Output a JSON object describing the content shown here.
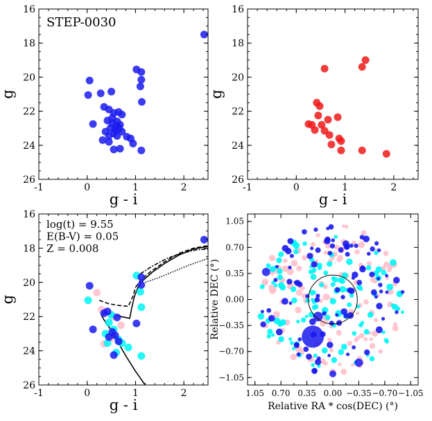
{
  "figure": {
    "label": "STEP-0030"
  },
  "chart_data": [
    {
      "type": "scatter",
      "panel": "top-left",
      "xlabel": "g - i",
      "ylabel": "g",
      "xlim": [
        -1,
        2.5
      ],
      "ylim": [
        26,
        16
      ],
      "xticks": [
        -1,
        0,
        1,
        2
      ],
      "yticks": [
        16,
        18,
        20,
        22,
        24,
        26
      ],
      "annotation": "STEP-0030",
      "color": "#1a1aee",
      "points": [
        [
          2.42,
          17.5
        ],
        [
          1.02,
          19.55
        ],
        [
          1.12,
          19.7
        ],
        [
          1.12,
          20.15
        ],
        [
          1.1,
          20.55
        ],
        [
          0.05,
          20.2
        ],
        [
          0.02,
          21.05
        ],
        [
          0.5,
          20.85
        ],
        [
          0.28,
          20.95
        ],
        [
          1.13,
          21.45
        ],
        [
          0.35,
          21.75
        ],
        [
          0.45,
          21.9
        ],
        [
          0.55,
          22.1
        ],
        [
          0.65,
          22.05
        ],
        [
          0.72,
          22.2
        ],
        [
          0.12,
          22.75
        ],
        [
          0.42,
          22.55
        ],
        [
          0.52,
          22.7
        ],
        [
          0.62,
          22.6
        ],
        [
          0.68,
          22.8
        ],
        [
          0.48,
          23.0
        ],
        [
          0.58,
          23.1
        ],
        [
          0.66,
          23.0
        ],
        [
          0.38,
          23.2
        ],
        [
          0.55,
          23.3
        ],
        [
          0.62,
          23.45
        ],
        [
          0.72,
          23.2
        ],
        [
          0.82,
          23.5
        ],
        [
          0.9,
          23.6
        ],
        [
          0.95,
          23.9
        ],
        [
          0.32,
          23.7
        ],
        [
          0.45,
          23.8
        ],
        [
          0.55,
          24.25
        ],
        [
          0.68,
          24.2
        ],
        [
          1.12,
          24.3
        ],
        [
          0.6,
          22.9
        ],
        [
          0.52,
          22.4
        ],
        [
          0.45,
          23.45
        ]
      ]
    },
    {
      "type": "scatter",
      "panel": "top-right",
      "xlabel": "g - i",
      "ylabel": "g",
      "xlim": [
        -1,
        2.5
      ],
      "ylim": [
        26,
        16
      ],
      "xticks": [
        -1,
        0,
        1,
        2
      ],
      "yticks": [
        16,
        18,
        20,
        22,
        24,
        26
      ],
      "color": "#ee1a1a",
      "points": [
        [
          1.42,
          19.0
        ],
        [
          1.35,
          19.4
        ],
        [
          0.58,
          19.5
        ],
        [
          0.42,
          21.5
        ],
        [
          0.48,
          21.7
        ],
        [
          0.45,
          22.25
        ],
        [
          0.85,
          22.35
        ],
        [
          0.52,
          22.8
        ],
        [
          0.65,
          22.5
        ],
        [
          0.25,
          22.75
        ],
        [
          0.32,
          22.8
        ],
        [
          0.38,
          23.1
        ],
        [
          0.58,
          23.15
        ],
        [
          0.68,
          23.4
        ],
        [
          0.88,
          23.6
        ],
        [
          0.92,
          23.75
        ],
        [
          0.72,
          23.95
        ],
        [
          0.92,
          24.3
        ],
        [
          1.35,
          24.3
        ],
        [
          1.85,
          24.5
        ]
      ]
    },
    {
      "type": "scatter",
      "panel": "bottom-left",
      "xlabel": "g - i",
      "ylabel": "g",
      "xlim": [
        -1,
        2.5
      ],
      "ylim": [
        26,
        16
      ],
      "xticks": [
        -1,
        0,
        1,
        2
      ],
      "yticks": [
        16,
        18,
        20,
        22,
        24,
        26
      ],
      "annotation": [
        "log(t) = 9.55",
        "E(B-V) = 0.05",
        "Z = 0.008"
      ],
      "series": [
        {
          "name": "pink",
          "color": "#ffc0cb",
          "points": [
            [
              0.2,
              20.6
            ],
            [
              0.3,
              21.6
            ],
            [
              0.55,
              22.0
            ],
            [
              0.35,
              23.6
            ],
            [
              0.48,
              23.3
            ],
            [
              0.7,
              22.5
            ]
          ]
        },
        {
          "name": "cyan",
          "color": "#00f5f5",
          "points": [
            [
              0.02,
              21.05
            ],
            [
              1.1,
              20.55
            ],
            [
              1.12,
              21.45
            ],
            [
              0.45,
              22.35
            ],
            [
              0.55,
              22.75
            ],
            [
              0.38,
              23.0
            ],
            [
              0.65,
              23.35
            ],
            [
              0.42,
              23.55
            ],
            [
              0.6,
              24.1
            ],
            [
              0.72,
              23.55
            ],
            [
              0.85,
              23.8
            ],
            [
              1.12,
              24.3
            ],
            [
              1.02,
              19.6
            ],
            [
              0.5,
              21.9
            ]
          ]
        },
        {
          "name": "blue",
          "color": "#1a1aee",
          "points": [
            [
              2.42,
              17.5
            ],
            [
              1.12,
              19.7
            ],
            [
              1.12,
              20.15
            ],
            [
              0.05,
              20.2
            ],
            [
              0.35,
              21.8
            ],
            [
              0.62,
              22.05
            ],
            [
              0.12,
              22.75
            ],
            [
              1.02,
              22.4
            ],
            [
              0.52,
              22.9
            ],
            [
              0.58,
              23.1
            ],
            [
              0.45,
              23.2
            ],
            [
              0.65,
              23.45
            ],
            [
              0.55,
              24.25
            ],
            [
              0.42,
              21.7
            ]
          ]
        }
      ],
      "isochrones": [
        {
          "style": "solid",
          "points": [
            [
              1.2,
              26.0
            ],
            [
              1.0,
              25.2
            ],
            [
              0.8,
              24.3
            ],
            [
              0.6,
              23.3
            ],
            [
              0.45,
              22.6
            ],
            [
              0.35,
              22.2
            ],
            [
              0.3,
              21.95
            ],
            [
              0.35,
              21.8
            ],
            [
              0.5,
              21.85
            ],
            [
              0.7,
              22.0
            ],
            [
              0.88,
              22.1
            ],
            [
              0.92,
              21.5
            ],
            [
              0.98,
              20.8
            ],
            [
              1.05,
              20.3
            ],
            [
              1.15,
              19.9
            ],
            [
              1.35,
              19.4
            ],
            [
              1.6,
              18.9
            ],
            [
              1.9,
              18.4
            ],
            [
              2.2,
              18.05
            ],
            [
              2.5,
              17.9
            ]
          ]
        },
        {
          "style": "dashed",
          "points": [
            [
              0.25,
              21.05
            ],
            [
              0.45,
              21.25
            ],
            [
              0.65,
              21.35
            ],
            [
              0.85,
              21.4
            ],
            [
              0.95,
              20.8
            ],
            [
              1.0,
              20.3
            ],
            [
              1.1,
              19.9
            ],
            [
              1.3,
              19.4
            ],
            [
              1.6,
              18.8
            ],
            [
              1.9,
              18.3
            ],
            [
              2.2,
              18.0
            ],
            [
              2.5,
              17.85
            ]
          ]
        },
        {
          "style": "dashdot",
          "points": [
            [
              1.1,
              19.5
            ],
            [
              1.35,
              19.05
            ],
            [
              1.65,
              18.6
            ],
            [
              1.95,
              18.3
            ],
            [
              2.25,
              18.1
            ],
            [
              2.5,
              18.05
            ]
          ]
        },
        {
          "style": "dotted",
          "points": [
            [
              1.2,
              20.0
            ],
            [
              1.5,
              19.7
            ],
            [
              1.8,
              19.35
            ],
            [
              2.1,
              19.0
            ],
            [
              2.5,
              18.6
            ]
          ]
        }
      ]
    },
    {
      "type": "scatter",
      "panel": "bottom-right",
      "xlabel": "Relative RA * cos(DEC) (°)",
      "ylabel": "Relative DEC (°)",
      "xlim": [
        1.15,
        -1.15
      ],
      "ylim": [
        -1.15,
        1.15
      ],
      "xticks": [
        1.05,
        0.7,
        0.35,
        0.0,
        -0.35,
        -0.7,
        -1.05
      ],
      "xticklabels": [
        "1.05",
        "0.70",
        "0.35",
        "0.00",
        "−0.35",
        "−0.70",
        "−1.05"
      ],
      "yticks": [
        1.05,
        0.7,
        0.35,
        0.0,
        -0.35,
        -0.7,
        -1.05
      ],
      "yticklabels": [
        "1.05",
        "0.70",
        "0.35",
        "0.00",
        "−0.35",
        "−0.70",
        "−1.05"
      ],
      "field_radius": 1.0,
      "circle": {
        "center": [
          0.0,
          0.0
        ],
        "radius": 0.33
      },
      "highlight": [
        {
          "ra": 0.27,
          "dec": -0.5,
          "size": 16,
          "color": "#1a1aee"
        },
        {
          "ra": 0.9,
          "dec": 0.37,
          "size": 6,
          "color": "#1a1aee"
        },
        {
          "ra": 0.2,
          "dec": -0.23,
          "size": 7,
          "color": "#1a1aee"
        },
        {
          "ra": -0.35,
          "dec": -0.85,
          "size": 6,
          "color": "#1a1aee"
        },
        {
          "ra": 0.0,
          "dec": -1.0,
          "size": 5,
          "color": "#1a1aee"
        }
      ],
      "series": [
        {
          "name": "pink",
          "color": "#ffc0cb",
          "seed": 11,
          "count": 120
        },
        {
          "name": "cyan",
          "color": "#00f5f5",
          "seed": 23,
          "count": 110
        },
        {
          "name": "blue",
          "color": "#1a1aee",
          "seed": 37,
          "count": 95
        }
      ]
    }
  ]
}
